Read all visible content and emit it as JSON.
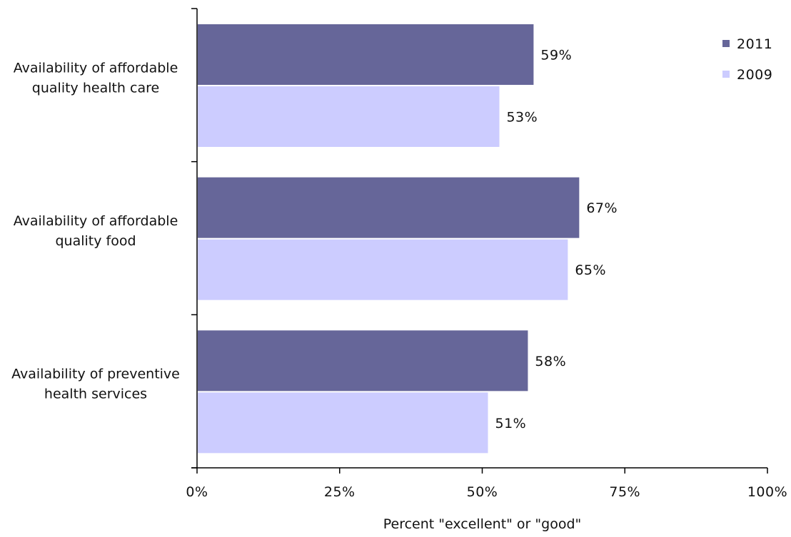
{
  "chart_data": {
    "type": "bar",
    "orientation": "horizontal",
    "categories": [
      [
        "Availability of affordable",
        "quality health care"
      ],
      [
        "Availability of affordable",
        "quality food"
      ],
      [
        "Availability of preventive",
        "health services"
      ]
    ],
    "series": [
      {
        "name": "2011",
        "values": [
          59,
          67,
          58
        ],
        "labels": [
          "59%",
          "67%",
          "58%"
        ],
        "color": "#666699"
      },
      {
        "name": "2009",
        "values": [
          53,
          65,
          51
        ],
        "labels": [
          "53%",
          "65%",
          "51%"
        ],
        "color": "#ccccff"
      }
    ],
    "xlabel": "Percent \"excellent\" or \"good\"",
    "ylabel": "",
    "xlim": [
      0,
      100
    ],
    "xticks": [
      0,
      25,
      50,
      75,
      100
    ],
    "xtick_labels": [
      "0%",
      "25%",
      "50%",
      "75%",
      "100%"
    ],
    "grid": false,
    "legend": {
      "position": "top-right"
    }
  }
}
